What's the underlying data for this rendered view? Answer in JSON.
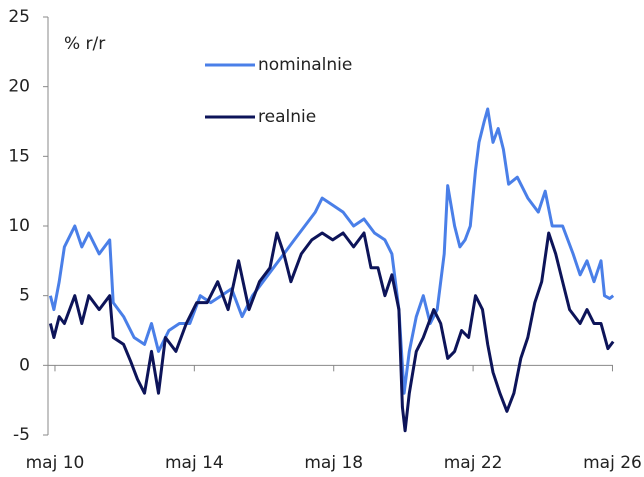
{
  "chart_data": {
    "type": "line",
    "annotation": "% r/r",
    "xlim": [
      2010.13,
      2026.46
    ],
    "xticks": [
      {
        "value": 2010.33,
        "label": "maj 10"
      },
      {
        "value": 2014.33,
        "label": "maj 14"
      },
      {
        "value": 2018.33,
        "label": "maj 18"
      },
      {
        "value": 2022.33,
        "label": "maj 22"
      },
      {
        "value": 2026.33,
        "label": "maj 26"
      }
    ],
    "ylim": [
      -5,
      25
    ],
    "yticks": [
      -5,
      0,
      5,
      10,
      15,
      20,
      25
    ],
    "series": [
      {
        "name": "nominalnie",
        "color": "#4a7fe8",
        "x": [
          2010.2,
          2010.3,
          2010.45,
          2010.6,
          2010.9,
          2011.1,
          2011.3,
          2011.6,
          2011.9,
          2012.0,
          2012.3,
          2012.6,
          2012.9,
          2013.1,
          2013.3,
          2013.6,
          2013.9,
          2014.2,
          2014.5,
          2014.8,
          2015.1,
          2015.4,
          2015.7,
          2016.0,
          2016.3,
          2016.6,
          2016.9,
          2017.2,
          2017.5,
          2017.8,
          2018.0,
          2018.3,
          2018.6,
          2018.9,
          2019.2,
          2019.5,
          2019.8,
          2020.0,
          2020.2,
          2020.35,
          2020.5,
          2020.7,
          2020.9,
          2021.1,
          2021.3,
          2021.5,
          2021.6,
          2021.8,
          2021.95,
          2022.1,
          2022.25,
          2022.4,
          2022.5,
          2022.65,
          2022.75,
          2022.9,
          2023.05,
          2023.2,
          2023.35,
          2023.6,
          2023.9,
          2024.2,
          2024.4,
          2024.6,
          2024.9,
          2025.2,
          2025.4,
          2025.6,
          2025.8,
          2026.0,
          2026.1,
          2026.25,
          2026.35
        ],
        "values": [
          5,
          4,
          6,
          8.5,
          10,
          8.5,
          9.5,
          8,
          9,
          4.5,
          3.5,
          2,
          1.5,
          3,
          1,
          2.5,
          3,
          3,
          5,
          4.5,
          5,
          5.5,
          3.5,
          5,
          6,
          7,
          8,
          9,
          10,
          11,
          12,
          11.5,
          11,
          10,
          10.5,
          9.5,
          9,
          8,
          4,
          -2,
          1,
          3.5,
          5,
          3,
          4,
          8,
          12.9,
          10,
          8.5,
          9,
          10,
          14,
          16,
          17.5,
          18.4,
          16,
          17,
          15.5,
          13,
          13.5,
          12,
          11,
          12.5,
          10,
          10,
          8,
          6.5,
          7.5,
          6,
          7.5,
          5,
          4.8,
          5
        ]
      },
      {
        "name": "realnie",
        "color": "#0d1459",
        "x": [
          2010.2,
          2010.3,
          2010.45,
          2010.6,
          2010.9,
          2011.1,
          2011.3,
          2011.6,
          2011.9,
          2012.0,
          2012.3,
          2012.5,
          2012.7,
          2012.9,
          2013.1,
          2013.3,
          2013.5,
          2013.8,
          2014.1,
          2014.4,
          2014.7,
          2015.0,
          2015.3,
          2015.6,
          2015.9,
          2016.2,
          2016.5,
          2016.7,
          2016.9,
          2017.1,
          2017.4,
          2017.7,
          2018.0,
          2018.3,
          2018.6,
          2018.9,
          2019.2,
          2019.4,
          2019.6,
          2019.8,
          2020.0,
          2020.2,
          2020.3,
          2020.38,
          2020.5,
          2020.7,
          2020.9,
          2021.2,
          2021.4,
          2021.6,
          2021.8,
          2022.0,
          2022.2,
          2022.4,
          2022.6,
          2022.75,
          2022.9,
          2023.1,
          2023.3,
          2023.5,
          2023.7,
          2023.9,
          2024.1,
          2024.3,
          2024.5,
          2024.7,
          2024.9,
          2025.1,
          2025.4,
          2025.6,
          2025.8,
          2026.0,
          2026.2,
          2026.35
        ],
        "values": [
          3,
          2,
          3.5,
          3,
          5,
          3,
          5,
          4,
          5,
          2,
          1.5,
          0.3,
          -1,
          -2,
          1,
          -2,
          2,
          1,
          3,
          4.5,
          4.5,
          6,
          4,
          7.5,
          4,
          6,
          7,
          9.5,
          8,
          6,
          8,
          9,
          9.5,
          9,
          9.5,
          8.5,
          9.5,
          7,
          7,
          5,
          6.5,
          4,
          -3,
          -4.7,
          -2,
          1,
          2,
          4,
          3,
          0.5,
          1,
          2.5,
          2,
          5,
          4,
          1.5,
          -0.5,
          -2,
          -3.3,
          -2,
          0.5,
          2,
          4.5,
          6,
          9.5,
          8,
          6,
          4,
          3,
          4,
          3,
          3,
          1.2,
          1.7
        ]
      }
    ]
  }
}
